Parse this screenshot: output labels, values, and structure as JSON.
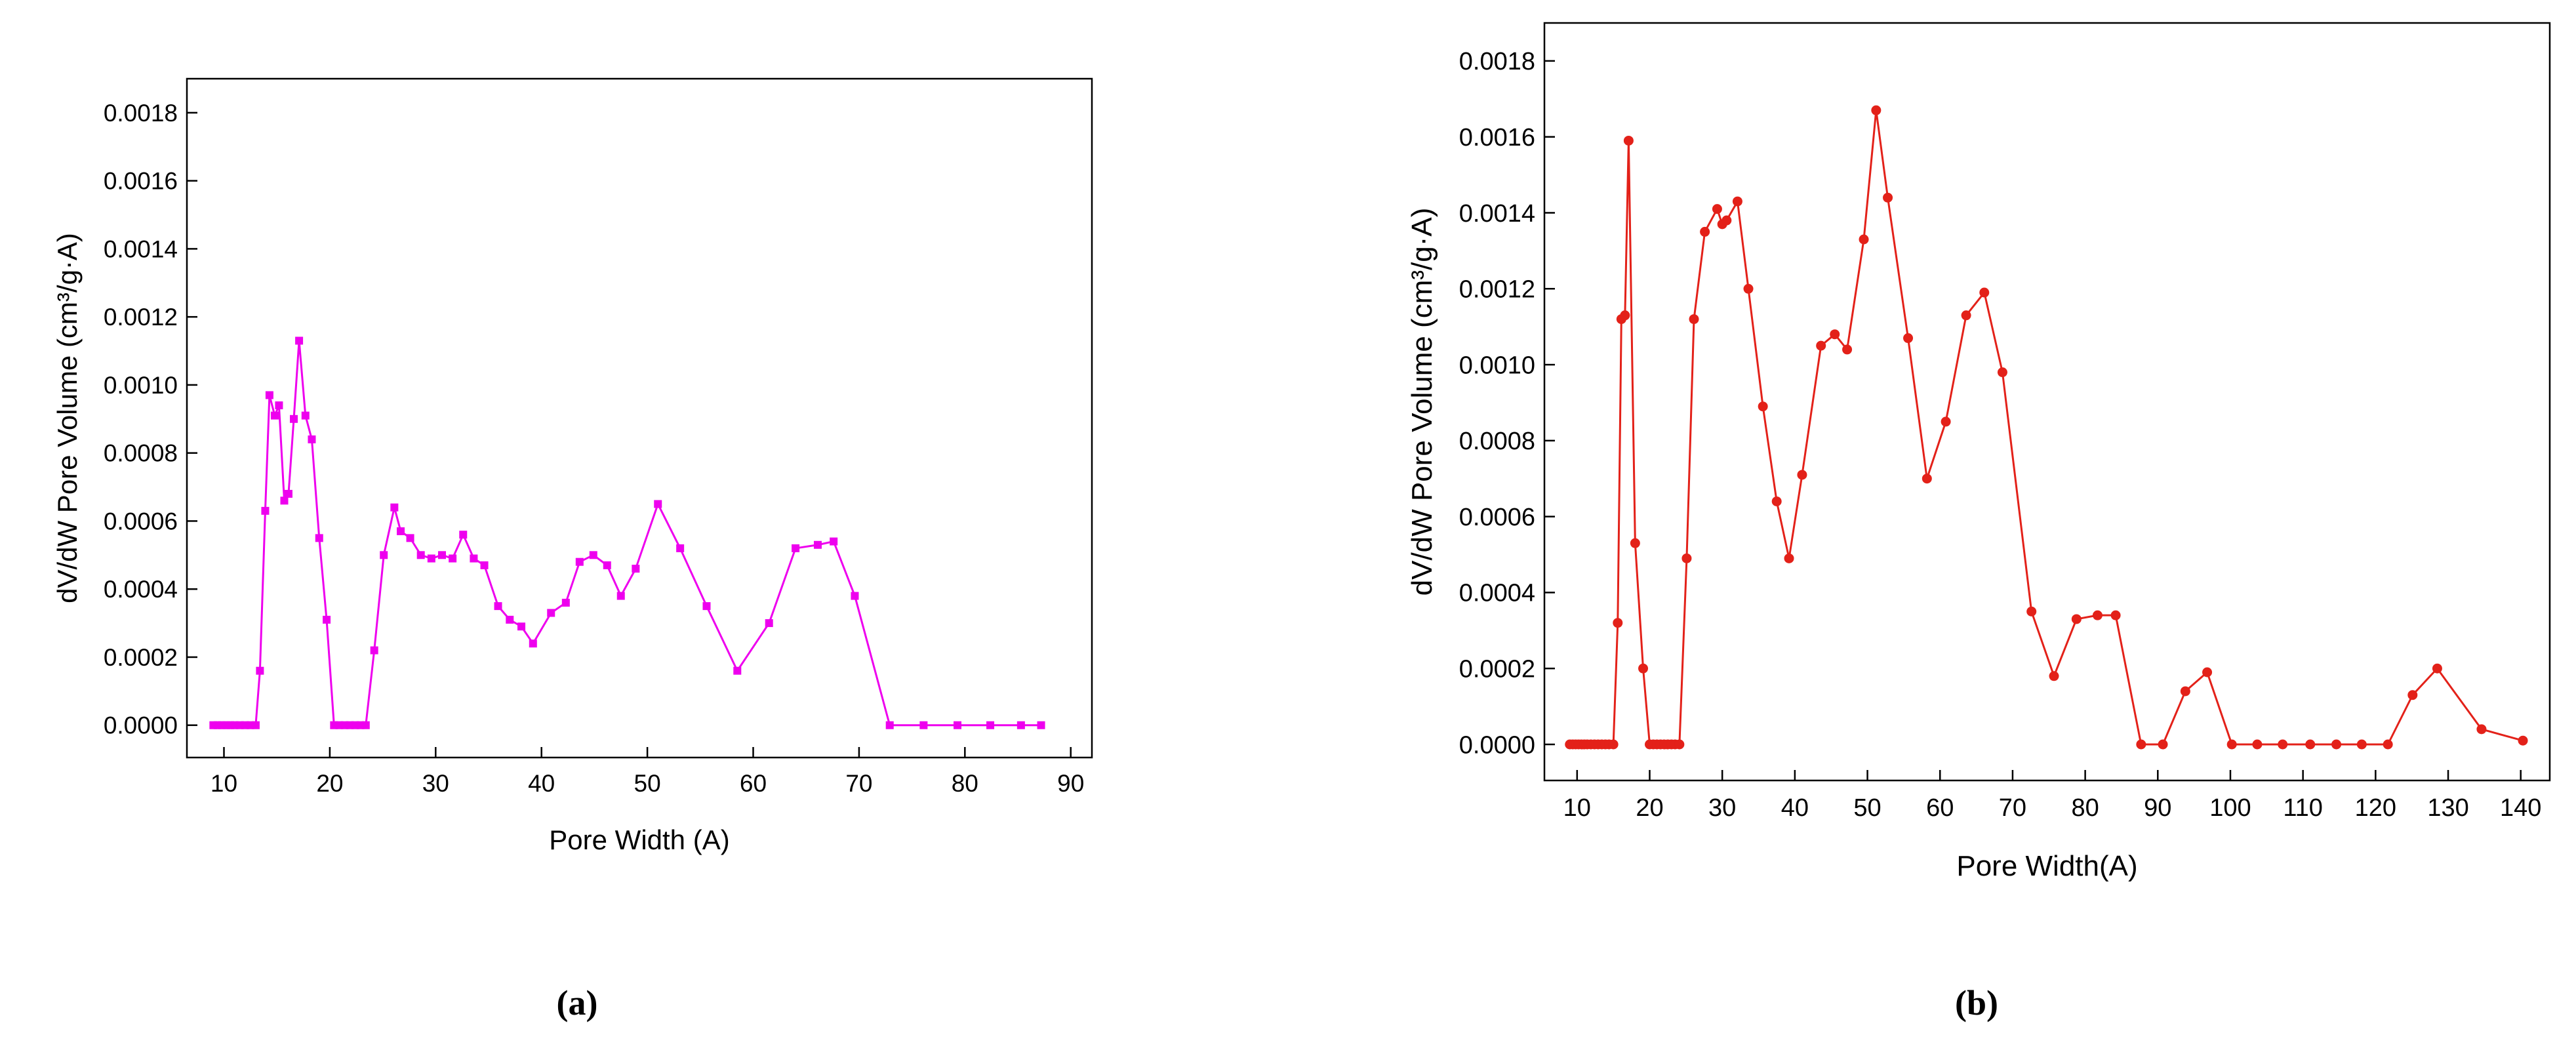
{
  "captions": {
    "a": "(a)",
    "b": "(b)"
  },
  "chart_data": [
    {
      "id": "a",
      "type": "line",
      "marker": "square",
      "color": "#ee00ee",
      "title": "",
      "xlabel": "Pore Width (A)",
      "ylabel": "dV/dW Pore Volume (cm³/g·A)",
      "xlim": [
        6.5,
        92
      ],
      "ylim": [
        -9.5e-05,
        0.0019
      ],
      "xticks": [
        10,
        20,
        30,
        40,
        50,
        60,
        70,
        80,
        90
      ],
      "yticks": [
        0.0,
        0.0002,
        0.0004,
        0.0006,
        0.0008,
        0.001,
        0.0012,
        0.0014,
        0.0016,
        0.0018
      ],
      "grid": false,
      "legend": "none",
      "x": [
        9.0,
        9.4,
        9.8,
        10.2,
        10.6,
        11.0,
        11.5,
        12.0,
        12.5,
        13.0,
        13.4,
        13.9,
        14.3,
        14.8,
        15.2,
        15.7,
        16.1,
        16.6,
        17.1,
        17.7,
        18.3,
        19.0,
        19.7,
        20.4,
        20.9,
        21.4,
        21.9,
        22.4,
        22.9,
        23.4,
        24.2,
        25.1,
        26.1,
        26.7,
        27.6,
        28.6,
        29.6,
        30.6,
        31.6,
        32.6,
        33.6,
        34.6,
        35.9,
        37.0,
        38.1,
        39.2,
        40.9,
        42.3,
        43.6,
        44.9,
        46.2,
        47.5,
        48.9,
        51.0,
        53.1,
        55.6,
        58.5,
        61.5,
        64.0,
        66.1,
        67.6,
        69.6,
        72.9,
        76.1,
        79.3,
        82.4,
        85.3,
        87.2
      ],
      "y": [
        0,
        0,
        0,
        0,
        0,
        0,
        0,
        0,
        0,
        0,
        0.00016,
        0.00063,
        0.00097,
        0.00091,
        0.00094,
        0.00066,
        0.00068,
        0.0009,
        0.00113,
        0.00091,
        0.00084,
        0.00055,
        0.00031,
        0,
        0,
        0,
        0,
        0,
        0,
        0,
        0.00022,
        0.0005,
        0.00064,
        0.00057,
        0.00055,
        0.0005,
        0.00049,
        0.0005,
        0.00049,
        0.00056,
        0.00049,
        0.00047,
        0.00035,
        0.00031,
        0.00029,
        0.00024,
        0.00033,
        0.00036,
        0.00048,
        0.0005,
        0.00047,
        0.00038,
        0.00046,
        0.00065,
        0.00052,
        0.00035,
        0.00016,
        0.0003,
        0.00052,
        0.00053,
        0.00054,
        0.00038,
        0,
        0,
        0,
        0,
        0,
        0
      ]
    },
    {
      "id": "b",
      "type": "line",
      "marker": "circle",
      "color": "#e32119",
      "title": "",
      "xlabel": "Pore Width(A)",
      "ylabel": "dV/dW Pore Volume (cm³/g·A)",
      "xlim": [
        5.5,
        144
      ],
      "ylim": [
        -9.5e-05,
        0.0019
      ],
      "xticks": [
        10,
        20,
        30,
        40,
        50,
        60,
        70,
        80,
        90,
        100,
        110,
        120,
        130,
        140
      ],
      "yticks": [
        0.0,
        0.0002,
        0.0004,
        0.0006,
        0.0008,
        0.001,
        0.0012,
        0.0014,
        0.0016,
        0.0018
      ],
      "grid": false,
      "legend": "none",
      "x": [
        9.0,
        9.4,
        9.8,
        10.2,
        10.6,
        11.0,
        11.4,
        11.9,
        12.4,
        12.9,
        13.4,
        13.9,
        14.4,
        15.0,
        15.6,
        16.1,
        16.6,
        17.1,
        18.0,
        19.1,
        20.0,
        20.5,
        21.0,
        21.5,
        22.0,
        22.5,
        23.0,
        23.5,
        24.1,
        25.1,
        26.1,
        27.6,
        29.3,
        30.0,
        30.6,
        32.1,
        33.6,
        35.6,
        37.5,
        39.2,
        41.0,
        43.6,
        45.5,
        47.2,
        49.5,
        51.2,
        52.8,
        55.6,
        58.2,
        60.8,
        63.6,
        66.1,
        68.6,
        72.6,
        75.7,
        78.8,
        81.7,
        84.2,
        87.7,
        90.7,
        93.8,
        96.8,
        100.2,
        103.7,
        107.2,
        111.0,
        114.6,
        118.1,
        121.7,
        125.1,
        128.5,
        134.6,
        140.3
      ],
      "y": [
        0,
        0,
        0,
        0,
        0,
        0,
        0,
        0,
        0,
        0,
        0,
        0,
        0,
        0,
        0.00032,
        0.00112,
        0.00113,
        0.00159,
        0.00053,
        0.0002,
        0,
        0,
        0,
        0,
        0,
        0,
        0,
        0,
        0,
        0.00049,
        0.00112,
        0.00135,
        0.00141,
        0.00137,
        0.00138,
        0.00143,
        0.0012,
        0.00089,
        0.00064,
        0.00049,
        0.00071,
        0.00105,
        0.00108,
        0.00104,
        0.00133,
        0.00167,
        0.00144,
        0.00107,
        0.0007,
        0.00085,
        0.00113,
        0.00119,
        0.00098,
        0.00035,
        0.00018,
        0.00033,
        0.00034,
        0.00034,
        0,
        0,
        0.00014,
        0.00019,
        0,
        0,
        0,
        0,
        0,
        0,
        0,
        0.00013,
        0.0002,
        4e-05,
        1e-05
      ]
    }
  ]
}
